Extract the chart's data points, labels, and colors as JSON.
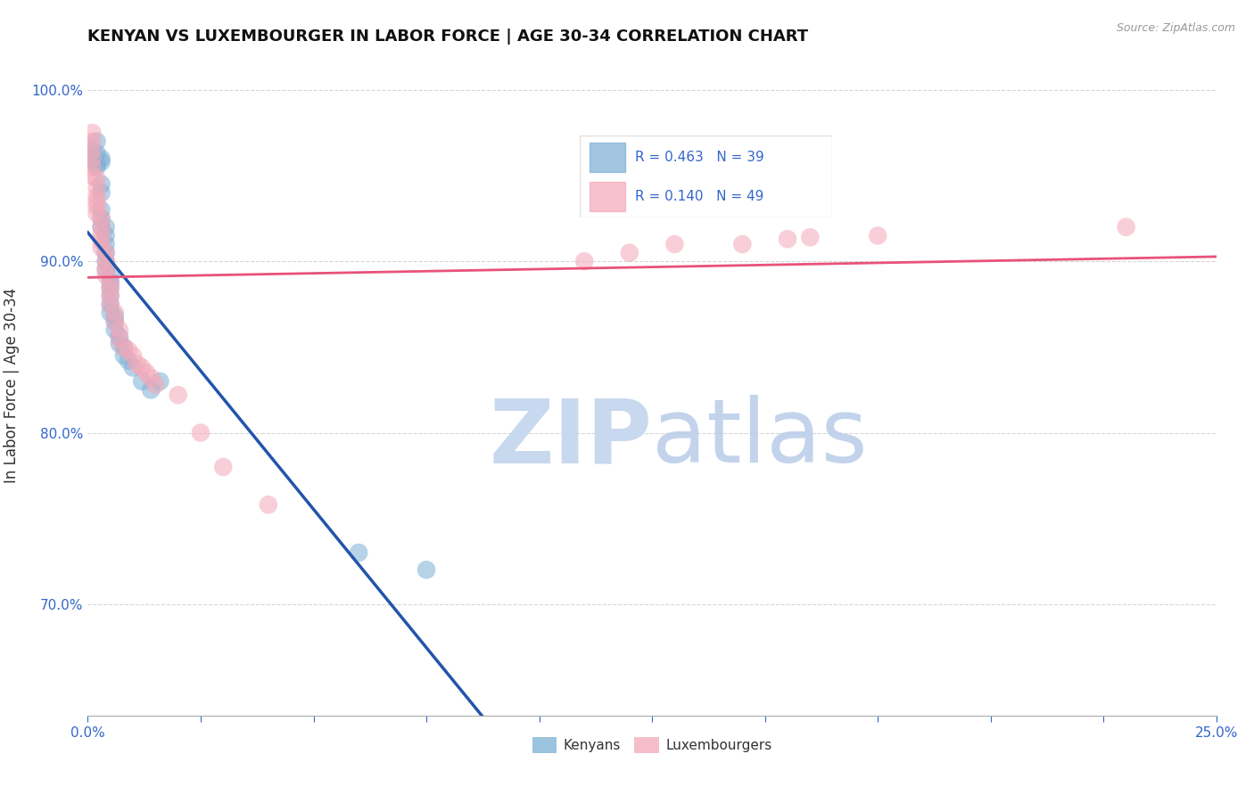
{
  "title": "KENYAN VS LUXEMBOURGER IN LABOR FORCE | AGE 30-34 CORRELATION CHART",
  "source_text": "Source: ZipAtlas.com",
  "ylabel": "In Labor Force | Age 30-34",
  "xlim": [
    0.0,
    0.25
  ],
  "ylim": [
    0.635,
    1.02
  ],
  "xticks": [
    0.0,
    0.025,
    0.05,
    0.075,
    0.1,
    0.125,
    0.15,
    0.175,
    0.2,
    0.225,
    0.25
  ],
  "xticklabels_shown": {
    "0.0": "0.0%",
    "0.25": "25.0%"
  },
  "yticks": [
    0.7,
    0.8,
    0.9,
    1.0
  ],
  "yticklabels": [
    "70.0%",
    "80.0%",
    "90.0%",
    "100.0%"
  ],
  "kenyan_color": "#7bafd4",
  "luxembourger_color": "#f4a8b8",
  "reg_kenyan_color": "#2255aa",
  "reg_luxembourger_color": "#e8527a",
  "legend_R_kenyan": "0.463",
  "legend_N_kenyan": "39",
  "legend_R_lux": "0.140",
  "legend_N_lux": "49",
  "label_kenyan": "Kenyans",
  "label_lux": "Luxembourgers",
  "kenyan_points": [
    [
      0.001,
      0.96
    ],
    [
      0.001,
      0.965
    ],
    [
      0.002,
      0.97
    ],
    [
      0.002,
      0.963
    ],
    [
      0.002,
      0.957
    ],
    [
      0.002,
      0.955
    ],
    [
      0.003,
      0.96
    ],
    [
      0.003,
      0.958
    ],
    [
      0.003,
      0.945
    ],
    [
      0.003,
      0.94
    ],
    [
      0.003,
      0.93
    ],
    [
      0.003,
      0.925
    ],
    [
      0.003,
      0.92
    ],
    [
      0.004,
      0.92
    ],
    [
      0.004,
      0.915
    ],
    [
      0.004,
      0.91
    ],
    [
      0.004,
      0.905
    ],
    [
      0.004,
      0.9
    ],
    [
      0.004,
      0.895
    ],
    [
      0.005,
      0.892
    ],
    [
      0.005,
      0.888
    ],
    [
      0.005,
      0.885
    ],
    [
      0.005,
      0.88
    ],
    [
      0.005,
      0.875
    ],
    [
      0.005,
      0.87
    ],
    [
      0.006,
      0.868
    ],
    [
      0.006,
      0.865
    ],
    [
      0.006,
      0.86
    ],
    [
      0.007,
      0.856
    ],
    [
      0.007,
      0.852
    ],
    [
      0.008,
      0.85
    ],
    [
      0.008,
      0.845
    ],
    [
      0.009,
      0.842
    ],
    [
      0.01,
      0.838
    ],
    [
      0.012,
      0.83
    ],
    [
      0.014,
      0.825
    ],
    [
      0.016,
      0.83
    ],
    [
      0.06,
      0.73
    ],
    [
      0.075,
      0.72
    ]
  ],
  "luxembourger_points": [
    [
      0.001,
      0.975
    ],
    [
      0.001,
      0.97
    ],
    [
      0.001,
      0.965
    ],
    [
      0.001,
      0.96
    ],
    [
      0.001,
      0.955
    ],
    [
      0.001,
      0.95
    ],
    [
      0.002,
      0.948
    ],
    [
      0.002,
      0.943
    ],
    [
      0.002,
      0.938
    ],
    [
      0.002,
      0.935
    ],
    [
      0.002,
      0.932
    ],
    [
      0.002,
      0.928
    ],
    [
      0.003,
      0.925
    ],
    [
      0.003,
      0.92
    ],
    [
      0.003,
      0.916
    ],
    [
      0.003,
      0.912
    ],
    [
      0.003,
      0.908
    ],
    [
      0.004,
      0.905
    ],
    [
      0.004,
      0.9
    ],
    [
      0.004,
      0.896
    ],
    [
      0.004,
      0.892
    ],
    [
      0.005,
      0.888
    ],
    [
      0.005,
      0.884
    ],
    [
      0.005,
      0.88
    ],
    [
      0.005,
      0.875
    ],
    [
      0.006,
      0.87
    ],
    [
      0.006,
      0.865
    ],
    [
      0.007,
      0.86
    ],
    [
      0.007,
      0.855
    ],
    [
      0.008,
      0.85
    ],
    [
      0.009,
      0.848
    ],
    [
      0.01,
      0.845
    ],
    [
      0.011,
      0.84
    ],
    [
      0.012,
      0.838
    ],
    [
      0.013,
      0.835
    ],
    [
      0.014,
      0.832
    ],
    [
      0.015,
      0.828
    ],
    [
      0.02,
      0.822
    ],
    [
      0.025,
      0.8
    ],
    [
      0.03,
      0.78
    ],
    [
      0.04,
      0.758
    ],
    [
      0.11,
      0.9
    ],
    [
      0.12,
      0.905
    ],
    [
      0.13,
      0.91
    ],
    [
      0.145,
      0.91
    ],
    [
      0.155,
      0.913
    ],
    [
      0.16,
      0.914
    ],
    [
      0.175,
      0.915
    ],
    [
      0.23,
      0.92
    ]
  ]
}
